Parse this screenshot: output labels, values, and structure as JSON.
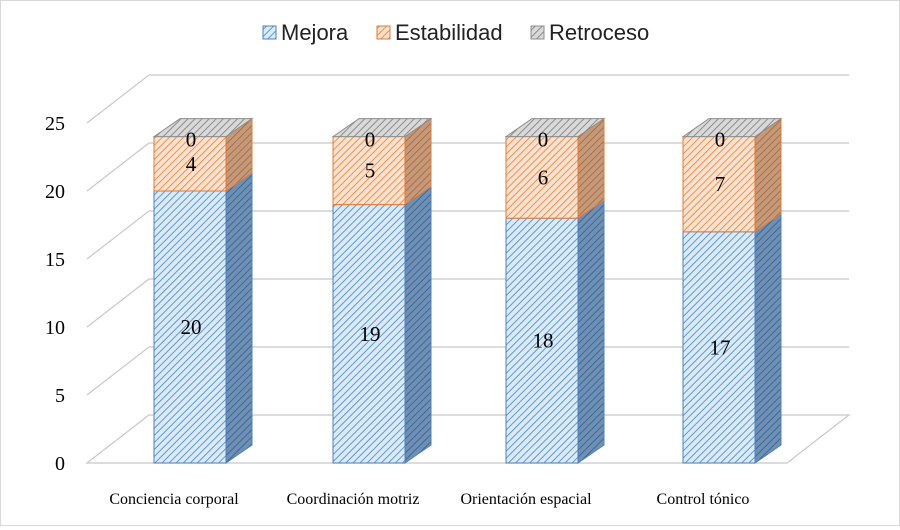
{
  "chart_data": {
    "type": "bar",
    "stacked": true,
    "three_d": true,
    "categories": [
      "Conciencia corporal",
      "Coordinación motriz",
      "Orientación espacial",
      "Control tónico"
    ],
    "series": [
      {
        "name": "Mejora",
        "values": [
          20,
          19,
          18,
          17
        ],
        "color": "#5b9bd5"
      },
      {
        "name": "Estabilidad",
        "values": [
          4,
          5,
          6,
          7
        ],
        "color": "#ed7d31"
      },
      {
        "name": "Retroceso",
        "values": [
          0,
          0,
          0,
          0
        ],
        "color": "#a5a5a5"
      }
    ],
    "yticks": [
      "0",
      "5",
      "10",
      "15",
      "20",
      "25"
    ],
    "ylim": [
      0,
      25
    ],
    "grid": true,
    "legend": "top"
  }
}
